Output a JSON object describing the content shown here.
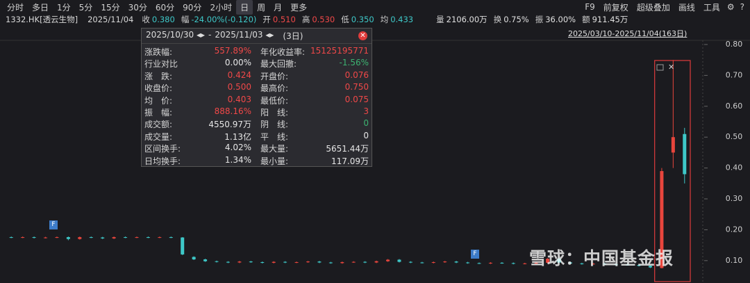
{
  "toolbar": {
    "periods": [
      "分时",
      "多日",
      "1分",
      "5分",
      "15分",
      "30分",
      "60分",
      "90分",
      "2小时",
      "日",
      "周",
      "月",
      "更多"
    ],
    "tools": [
      "F9",
      "前复权",
      "超级叠加",
      "画线",
      "工具"
    ]
  },
  "quote": {
    "symbol": "1332.HK[透云生物]",
    "date": "2025/11/04",
    "fields": [
      {
        "label": "收",
        "value": "0.380",
        "color": "#3ec8c8"
      },
      {
        "label": "幅",
        "value": "-24.00%(-0.120)",
        "color": "#3ec8c8"
      },
      {
        "label": "开",
        "value": "0.510",
        "color": "#f04848"
      },
      {
        "label": "高",
        "value": "0.530",
        "color": "#f04848"
      },
      {
        "label": "低",
        "value": "0.350",
        "color": "#3ec8c8"
      },
      {
        "label": "均",
        "value": "0.433",
        "color": "#3ec8c8"
      },
      {
        "label": "量",
        "value": "2106.00万",
        "color": "#e0e0e0"
      },
      {
        "label": "换",
        "value": "0.75%",
        "color": "#e0e0e0"
      },
      {
        "label": "振",
        "value": "36.00%",
        "color": "#e0e0e0"
      },
      {
        "label": "额",
        "value": "911.45万",
        "color": "#e0e0e0"
      }
    ]
  },
  "range": "2025/03/10-2025/11/04(163日)",
  "popup": {
    "start": "2025/10/30 ◂▸",
    "dash": "-",
    "end": "2025/11/03 ◂▸",
    "days": "(3日)",
    "left": [
      {
        "label": "涨跌幅:",
        "value": "557.89%",
        "color": "#f04848"
      },
      {
        "label": "行业对比",
        "value": "0.00%",
        "color": "#e6e6e6"
      },
      {
        "label": "涨　跌:",
        "value": "0.424",
        "color": "#f04848"
      },
      {
        "label": "收盘价:",
        "value": "0.500",
        "color": "#f04848"
      },
      {
        "label": "均　价:",
        "value": "0.403",
        "color": "#f04848"
      },
      {
        "label": "振　幅:",
        "value": "888.16%",
        "color": "#f04848"
      },
      {
        "label": "成交额:",
        "value": "4550.97万",
        "color": "#e6e6e6"
      },
      {
        "label": "成交量:",
        "value": "1.13亿",
        "color": "#e6e6e6"
      },
      {
        "label": "区间换手:",
        "value": "4.02%",
        "color": "#e6e6e6"
      },
      {
        "label": "日均换手:",
        "value": "1.34%",
        "color": "#e6e6e6"
      }
    ],
    "right": [
      {
        "label": "年化收益率:",
        "value": "15125195771",
        "color": "#f04848"
      },
      {
        "label": "最大回撤:",
        "value": "-1.56%",
        "color": "#3cb371"
      },
      {
        "label": "开盘价:",
        "value": "0.076",
        "color": "#f04848"
      },
      {
        "label": "最高价:",
        "value": "0.750",
        "color": "#f04848"
      },
      {
        "label": "最低价:",
        "value": "0.075",
        "color": "#f04848"
      },
      {
        "label": "阳　线:",
        "value": "3",
        "color": "#f04848"
      },
      {
        "label": "阴　线:",
        "value": "0",
        "color": "#3cb371"
      },
      {
        "label": "平　线:",
        "value": "0",
        "color": "#e6e6e6"
      },
      {
        "label": "最大量:",
        "value": "5651.44万",
        "color": "#e6e6e6"
      },
      {
        "label": "最小量:",
        "value": "117.09万",
        "color": "#e6e6e6"
      }
    ]
  },
  "flags": [
    "F",
    "F"
  ],
  "watermark": "雪球：中国基金报",
  "chart_data": {
    "type": "candlestick",
    "up_color": "#e8453c",
    "down_color": "#3ec8c8",
    "ylim": [
      0.03,
      0.81
    ],
    "yticks": [
      {
        "value": 0.1,
        "label": "0.10"
      },
      {
        "value": 0.2,
        "label": "0.20"
      },
      {
        "value": 0.3,
        "label": "0.30"
      },
      {
        "value": 0.4,
        "label": "0.40"
      },
      {
        "value": 0.5,
        "label": "0.50"
      },
      {
        "value": 0.6,
        "label": "0.60"
      },
      {
        "value": 0.7,
        "label": "0.70"
      },
      {
        "value": 0.8,
        "label": "0.80"
      }
    ],
    "open": [
      0.176,
      0.175,
      0.176,
      0.174,
      0.175,
      0.176,
      0.17,
      0.176,
      0.175,
      0.172,
      0.176,
      0.175,
      0.176,
      0.175,
      0.176,
      0.175,
      0.112,
      0.104,
      0.098,
      0.096,
      0.094,
      0.097,
      0.095,
      0.093,
      0.096,
      0.094,
      0.095,
      0.097,
      0.094,
      0.092,
      0.095,
      0.096,
      0.094,
      0.098,
      0.103,
      0.096,
      0.094,
      0.093,
      0.095,
      0.097,
      0.094,
      0.092,
      0.091,
      0.093,
      0.092,
      0.09,
      0.091,
      0.093,
      0.106,
      0.094,
      0.091,
      0.089,
      0.09,
      0.088,
      0.087,
      0.086,
      0.083,
      0.076,
      0.45,
      0.51
    ],
    "high": [
      0.178,
      0.178,
      0.178,
      0.177,
      0.178,
      0.178,
      0.178,
      0.178,
      0.177,
      0.178,
      0.178,
      0.178,
      0.178,
      0.178,
      0.178,
      0.176,
      0.114,
      0.106,
      0.1,
      0.098,
      0.099,
      0.099,
      0.097,
      0.098,
      0.098,
      0.097,
      0.099,
      0.099,
      0.096,
      0.097,
      0.098,
      0.098,
      0.1,
      0.105,
      0.105,
      0.098,
      0.096,
      0.097,
      0.099,
      0.099,
      0.096,
      0.094,
      0.095,
      0.095,
      0.094,
      0.093,
      0.095,
      0.108,
      0.108,
      0.096,
      0.093,
      0.092,
      0.092,
      0.09,
      0.089,
      0.088,
      0.085,
      0.4,
      0.75,
      0.53
    ],
    "low": [
      0.173,
      0.173,
      0.172,
      0.172,
      0.173,
      0.166,
      0.168,
      0.173,
      0.17,
      0.17,
      0.173,
      0.173,
      0.173,
      0.173,
      0.173,
      0.118,
      0.102,
      0.096,
      0.094,
      0.092,
      0.092,
      0.093,
      0.091,
      0.091,
      0.092,
      0.092,
      0.093,
      0.092,
      0.09,
      0.09,
      0.093,
      0.092,
      0.092,
      0.096,
      0.094,
      0.092,
      0.091,
      0.091,
      0.093,
      0.092,
      0.09,
      0.089,
      0.089,
      0.09,
      0.088,
      0.088,
      0.089,
      0.091,
      0.092,
      0.089,
      0.087,
      0.087,
      0.086,
      0.085,
      0.084,
      0.081,
      0.076,
      0.075,
      0.4,
      0.35
    ],
    "close": [
      0.175,
      0.176,
      0.174,
      0.175,
      0.176,
      0.17,
      0.176,
      0.175,
      0.172,
      0.176,
      0.175,
      0.176,
      0.175,
      0.176,
      0.175,
      0.12,
      0.104,
      0.098,
      0.096,
      0.094,
      0.097,
      0.095,
      0.093,
      0.096,
      0.094,
      0.095,
      0.097,
      0.094,
      0.092,
      0.095,
      0.096,
      0.094,
      0.098,
      0.103,
      0.096,
      0.094,
      0.093,
      0.095,
      0.097,
      0.094,
      0.092,
      0.091,
      0.093,
      0.092,
      0.09,
      0.091,
      0.093,
      0.106,
      0.094,
      0.091,
      0.089,
      0.09,
      0.088,
      0.087,
      0.086,
      0.083,
      0.078,
      0.39,
      0.5,
      0.38
    ]
  }
}
